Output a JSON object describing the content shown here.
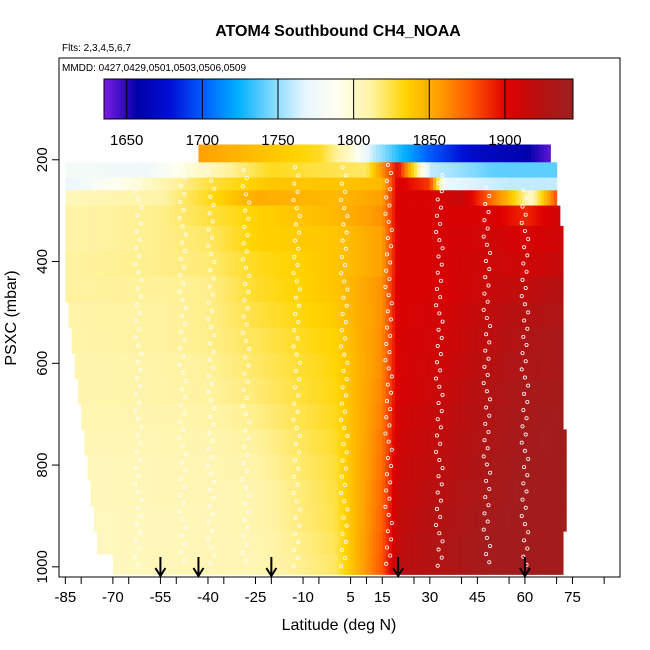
{
  "chart_data": {
    "type": "heatmap",
    "title": "ATOM4 Southbound CH4_NOAA",
    "flights_label": "Flts: 2,3,4,5,6,7",
    "dates_label": "MMDD: 0427,0429,0501,0503,0506,0509",
    "xlabel": "Latitude (deg N)",
    "ylabel": "PSXC (mbar)",
    "xlim": [
      -87,
      90
    ],
    "ylim": [
      1020,
      0
    ],
    "x_ticks": [
      -85,
      -70,
      -55,
      -40,
      -25,
      -10,
      5,
      15,
      30,
      45,
      60,
      75
    ],
    "y_ticks": [
      200,
      400,
      600,
      800,
      1000
    ],
    "colorbar": {
      "range": [
        1635,
        1945
      ],
      "ticks": [
        1650,
        1700,
        1750,
        1800,
        1850,
        1900
      ],
      "colors": [
        "#7a1ee0",
        "#0000a8",
        "#0010d8",
        "#0060ff",
        "#00b0ff",
        "#7fd8ff",
        "#e8f6ff",
        "#fffff0",
        "#fff3a0",
        "#ffd400",
        "#ff9d00",
        "#ff5200",
        "#e00000",
        "#b81010",
        "#9c2020"
      ]
    },
    "vertical_profiles": [
      {
        "lat": -62,
        "p_top": 245,
        "p_bottom": 1000
      },
      {
        "lat": -48,
        "p_top": 235,
        "p_bottom": 1000
      },
      {
        "lat": -39,
        "p_top": 225,
        "p_bottom": 1000
      },
      {
        "lat": -28,
        "p_top": 220,
        "p_bottom": 1000
      },
      {
        "lat": -12,
        "p_top": 215,
        "p_bottom": 1000
      },
      {
        "lat": 3,
        "p_top": 215,
        "p_bottom": 1000
      },
      {
        "lat": 17,
        "p_top": 210,
        "p_bottom": 1000
      },
      {
        "lat": 33,
        "p_top": 230,
        "p_bottom": 1000
      },
      {
        "lat": 48,
        "p_top": 255,
        "p_bottom": 1000
      },
      {
        "lat": 60,
        "p_top": 260,
        "p_bottom": 1000
      }
    ],
    "layers": [
      {
        "p_top": 170,
        "p_bottom": 205,
        "lat_start": -43,
        "lat_end": 68,
        "points": [
          [
            -43,
            1855
          ],
          [
            -20,
            1840
          ],
          [
            -5,
            1830
          ],
          [
            5,
            1800
          ],
          [
            12,
            1760
          ],
          [
            20,
            1730
          ],
          [
            30,
            1700
          ],
          [
            45,
            1670
          ],
          [
            60,
            1660
          ],
          [
            68,
            1640
          ]
        ]
      },
      {
        "p_top": 205,
        "p_bottom": 235,
        "lat_start": -85,
        "lat_end": 70,
        "points": [
          [
            -85,
            1780
          ],
          [
            -60,
            1775
          ],
          [
            -43,
            1800
          ],
          [
            -20,
            1830
          ],
          [
            -5,
            1825
          ],
          [
            10,
            1820
          ],
          [
            20,
            1900
          ],
          [
            30,
            1760
          ],
          [
            50,
            1740
          ],
          [
            70,
            1740
          ]
        ]
      },
      {
        "p_top": 235,
        "p_bottom": 260,
        "lat_start": -85,
        "lat_end": 70,
        "points": [
          [
            -85,
            1770
          ],
          [
            -60,
            1800
          ],
          [
            -40,
            1825
          ],
          [
            -20,
            1840
          ],
          [
            0,
            1840
          ],
          [
            15,
            1845
          ],
          [
            20,
            1905
          ],
          [
            30,
            1885
          ],
          [
            35,
            1770
          ],
          [
            55,
            1760
          ],
          [
            70,
            1760
          ]
        ]
      },
      {
        "p_top": 260,
        "p_bottom": 290,
        "lat_start": -85,
        "lat_end": 70,
        "points": [
          [
            -85,
            1805
          ],
          [
            -55,
            1810
          ],
          [
            -40,
            1830
          ],
          [
            -25,
            1850
          ],
          [
            0,
            1845
          ],
          [
            15,
            1855
          ],
          [
            20,
            1905
          ],
          [
            32,
            1905
          ],
          [
            40,
            1915
          ],
          [
            55,
            1845
          ],
          [
            62,
            1800
          ],
          [
            70,
            1880
          ]
        ]
      },
      {
        "p_top": 290,
        "p_bottom": 330,
        "lat_start": -85,
        "lat_end": 71,
        "points": [
          [
            -85,
            1810
          ],
          [
            -55,
            1815
          ],
          [
            -40,
            1825
          ],
          [
            -25,
            1835
          ],
          [
            0,
            1845
          ],
          [
            15,
            1860
          ],
          [
            20,
            1905
          ],
          [
            30,
            1905
          ],
          [
            50,
            1905
          ],
          [
            60,
            1890
          ],
          [
            71,
            1910
          ]
        ]
      },
      {
        "p_top": 330,
        "p_bottom": 380,
        "lat_start": -85,
        "lat_end": 72,
        "points": [
          [
            -85,
            1810
          ],
          [
            -55,
            1815
          ],
          [
            -40,
            1820
          ],
          [
            -25,
            1835
          ],
          [
            0,
            1840
          ],
          [
            15,
            1855
          ],
          [
            20,
            1905
          ],
          [
            30,
            1905
          ],
          [
            50,
            1910
          ],
          [
            60,
            1905
          ],
          [
            72,
            1910
          ]
        ]
      },
      {
        "p_top": 380,
        "p_bottom": 430,
        "lat_start": -85,
        "lat_end": 72,
        "points": [
          [
            -85,
            1812
          ],
          [
            -55,
            1815
          ],
          [
            -40,
            1818
          ],
          [
            -25,
            1830
          ],
          [
            0,
            1840
          ],
          [
            15,
            1855
          ],
          [
            20,
            1905
          ],
          [
            30,
            1905
          ],
          [
            50,
            1912
          ],
          [
            60,
            1910
          ],
          [
            72,
            1915
          ]
        ]
      },
      {
        "p_top": 430,
        "p_bottom": 480,
        "lat_start": -85,
        "lat_end": 72,
        "points": [
          [
            -85,
            1812
          ],
          [
            -55,
            1813
          ],
          [
            -40,
            1815
          ],
          [
            -25,
            1828
          ],
          [
            0,
            1840
          ],
          [
            15,
            1860
          ],
          [
            20,
            1905
          ],
          [
            35,
            1905
          ],
          [
            50,
            1915
          ],
          [
            60,
            1918
          ],
          [
            72,
            1925
          ]
        ]
      },
      {
        "p_top": 480,
        "p_bottom": 530,
        "lat_start": -84,
        "lat_end": 72,
        "points": [
          [
            -84,
            1810
          ],
          [
            -55,
            1812
          ],
          [
            -40,
            1815
          ],
          [
            -25,
            1825
          ],
          [
            0,
            1838
          ],
          [
            15,
            1860
          ],
          [
            20,
            1905
          ],
          [
            35,
            1908
          ],
          [
            50,
            1920
          ],
          [
            60,
            1925
          ],
          [
            72,
            1930
          ]
        ]
      },
      {
        "p_top": 530,
        "p_bottom": 580,
        "lat_start": -83,
        "lat_end": 72,
        "points": [
          [
            -83,
            1810
          ],
          [
            -55,
            1812
          ],
          [
            -40,
            1815
          ],
          [
            -25,
            1822
          ],
          [
            0,
            1835
          ],
          [
            15,
            1862
          ],
          [
            20,
            1905
          ],
          [
            35,
            1910
          ],
          [
            50,
            1922
          ],
          [
            60,
            1930
          ],
          [
            72,
            1935
          ]
        ]
      },
      {
        "p_top": 580,
        "p_bottom": 630,
        "lat_start": -82,
        "lat_end": 72,
        "points": [
          [
            -82,
            1808
          ],
          [
            -55,
            1810
          ],
          [
            -40,
            1813
          ],
          [
            -25,
            1820
          ],
          [
            0,
            1833
          ],
          [
            15,
            1862
          ],
          [
            20,
            1905
          ],
          [
            35,
            1912
          ],
          [
            50,
            1925
          ],
          [
            60,
            1932
          ],
          [
            72,
            1935
          ]
        ]
      },
      {
        "p_top": 630,
        "p_bottom": 680,
        "lat_start": -81,
        "lat_end": 72,
        "points": [
          [
            -81,
            1808
          ],
          [
            -55,
            1810
          ],
          [
            -40,
            1812
          ],
          [
            -25,
            1818
          ],
          [
            0,
            1832
          ],
          [
            15,
            1864
          ],
          [
            20,
            1905
          ],
          [
            35,
            1915
          ],
          [
            50,
            1928
          ],
          [
            60,
            1935
          ],
          [
            72,
            1938
          ]
        ]
      },
      {
        "p_top": 680,
        "p_bottom": 730,
        "lat_start": -80,
        "lat_end": 72,
        "points": [
          [
            -80,
            1807
          ],
          [
            -55,
            1808
          ],
          [
            -40,
            1810
          ],
          [
            -25,
            1815
          ],
          [
            0,
            1830
          ],
          [
            15,
            1866
          ],
          [
            20,
            1908
          ],
          [
            35,
            1918
          ],
          [
            50,
            1930
          ],
          [
            60,
            1936
          ],
          [
            72,
            1940
          ]
        ]
      },
      {
        "p_top": 730,
        "p_bottom": 780,
        "lat_start": -79,
        "lat_end": 73,
        "points": [
          [
            -79,
            1806
          ],
          [
            -55,
            1807
          ],
          [
            -40,
            1808
          ],
          [
            -25,
            1812
          ],
          [
            0,
            1828
          ],
          [
            15,
            1868
          ],
          [
            20,
            1910
          ],
          [
            35,
            1920
          ],
          [
            50,
            1932
          ],
          [
            60,
            1938
          ],
          [
            73,
            1940
          ]
        ]
      },
      {
        "p_top": 780,
        "p_bottom": 830,
        "lat_start": -78,
        "lat_end": 73,
        "points": [
          [
            -78,
            1805
          ],
          [
            -55,
            1806
          ],
          [
            -40,
            1807
          ],
          [
            -25,
            1810
          ],
          [
            0,
            1826
          ],
          [
            15,
            1870
          ],
          [
            20,
            1912
          ],
          [
            35,
            1922
          ],
          [
            50,
            1934
          ],
          [
            60,
            1940
          ],
          [
            73,
            1940
          ]
        ]
      },
      {
        "p_top": 830,
        "p_bottom": 880,
        "lat_start": -77,
        "lat_end": 73,
        "points": [
          [
            -77,
            1805
          ],
          [
            -55,
            1806
          ],
          [
            -40,
            1806
          ],
          [
            -25,
            1808
          ],
          [
            0,
            1825
          ],
          [
            15,
            1872
          ],
          [
            20,
            1914
          ],
          [
            35,
            1925
          ],
          [
            50,
            1936
          ],
          [
            60,
            1940
          ],
          [
            73,
            1940
          ]
        ]
      },
      {
        "p_top": 880,
        "p_bottom": 930,
        "lat_start": -76,
        "lat_end": 73,
        "points": [
          [
            -76,
            1804
          ],
          [
            -55,
            1805
          ],
          [
            -40,
            1806
          ],
          [
            -25,
            1808
          ],
          [
            0,
            1824
          ],
          [
            15,
            1874
          ],
          [
            20,
            1916
          ],
          [
            35,
            1928
          ],
          [
            50,
            1938
          ],
          [
            60,
            1940
          ],
          [
            73,
            1940
          ]
        ]
      },
      {
        "p_top": 930,
        "p_bottom": 975,
        "lat_start": -75,
        "lat_end": 72,
        "points": [
          [
            -75,
            1804
          ],
          [
            -55,
            1805
          ],
          [
            -40,
            1806
          ],
          [
            -25,
            1807
          ],
          [
            0,
            1822
          ],
          [
            15,
            1876
          ],
          [
            20,
            1918
          ],
          [
            35,
            1930
          ],
          [
            50,
            1940
          ],
          [
            60,
            1940
          ],
          [
            72,
            1940
          ]
        ]
      },
      {
        "p_top": 975,
        "p_bottom": 1015,
        "lat_start": -70,
        "lat_end": 72,
        "points": [
          [
            -70,
            1804
          ],
          [
            -55,
            1805
          ],
          [
            -40,
            1806
          ],
          [
            -25,
            1807
          ],
          [
            0,
            1820
          ],
          [
            15,
            1878
          ],
          [
            20,
            1920
          ],
          [
            35,
            1930
          ],
          [
            50,
            1940
          ],
          [
            60,
            1940
          ],
          [
            72,
            1940
          ]
        ]
      }
    ],
    "arrows_at_lat": [
      -55,
      -43,
      -20,
      20,
      60
    ]
  }
}
